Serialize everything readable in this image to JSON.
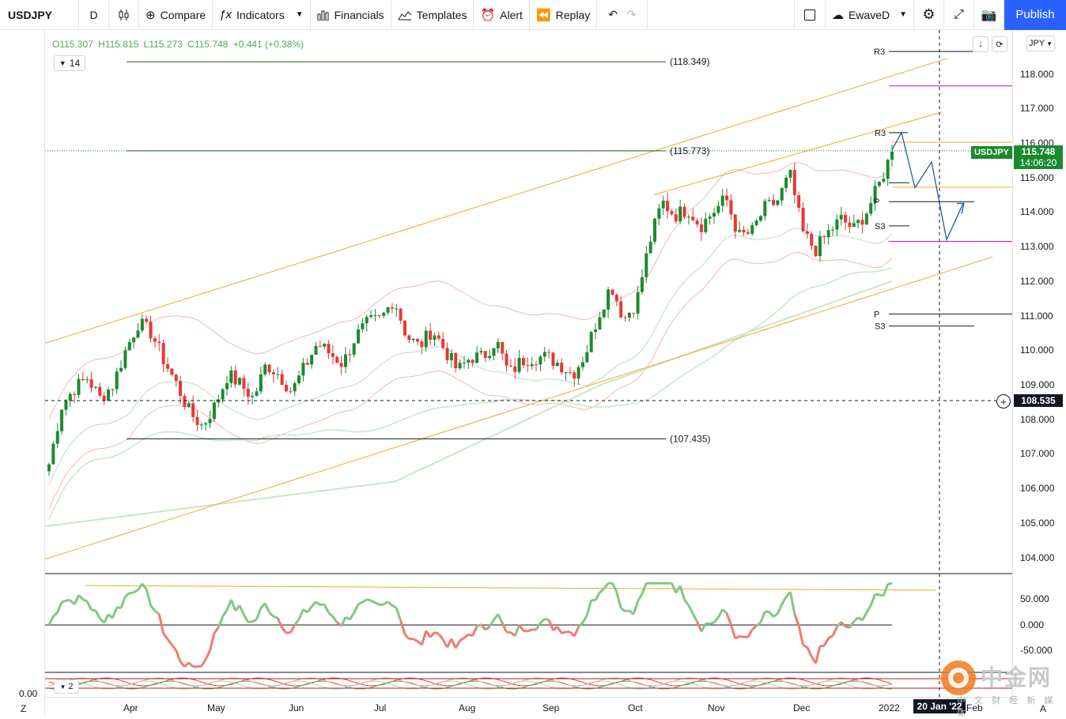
{
  "toolbar": {
    "symbol": "USDJPY",
    "interval": "D",
    "compare": "Compare",
    "indicators": "Indicators",
    "financials": "Financials",
    "templates": "Templates",
    "alert": "Alert",
    "replay": "Replay",
    "layout_name": "EwaveD",
    "publish": "Publish"
  },
  "ohlc": {
    "o": "O115.307",
    "h": "H115.815",
    "l": "L115.273",
    "c": "C115.748",
    "chg": "+0.441 (+0.38%)"
  },
  "indicator_length": "14",
  "oscillator_length": "2",
  "currency": "JPY",
  "price_scale": [
    "118.000",
    "117.000",
    "116.000",
    "115.000",
    "114.000",
    "113.000",
    "112.000",
    "111.000",
    "110.000",
    "109.000",
    "108.000",
    "107.000",
    "106.000",
    "105.000",
    "104.000"
  ],
  "osc_scale": [
    "50.000",
    "0.000",
    "-50.000"
  ],
  "osc2_scale": "0.00",
  "time_axis": [
    "Apr",
    "May",
    "Jun",
    "Jul",
    "Aug",
    "Sep",
    "Oct",
    "Nov",
    "Dec",
    "2022",
    "Feb"
  ],
  "axis_corner_left": "Z",
  "axis_corner_right": "A",
  "last_price": {
    "symbol": "USDJPY",
    "price": "115.748",
    "countdown": "14:06:20"
  },
  "crosshair_price": "108.535",
  "crosshair_date": "20 Jan '22",
  "levels": {
    "high": "(118.349)",
    "mid": "(115.773)",
    "low": "(107.435)"
  },
  "pivots": {
    "r3a": "R3",
    "r3b": "R3",
    "pa": "P",
    "s3a": "S3",
    "pb": "P",
    "s3b": "S3"
  },
  "watermark": {
    "cn": "中金网",
    "sub": "中 文 财 经 新 媒 体",
    "url": "CNGOLD.COM.CN"
  },
  "colors": {
    "up": "#1b8a2e",
    "down": "#e53935",
    "channel": "#f5a623",
    "accent": "#2962ff"
  },
  "chart_data": {
    "type": "candlestick",
    "symbol": "USDJPY",
    "interval": "D",
    "ylim": [
      103.5,
      119.0
    ],
    "last": 115.748,
    "close_path": [
      106.7,
      108.4,
      108.9,
      109.2,
      108.6,
      109.0,
      110.0,
      110.8,
      110.5,
      109.7,
      109.0,
      108.2,
      107.8,
      108.4,
      109.3,
      109.0,
      108.6,
      109.6,
      109.3,
      108.8,
      109.5,
      110.2,
      109.9,
      109.6,
      110.4,
      110.8,
      110.9,
      111.5,
      110.4,
      110.1,
      110.6,
      110.0,
      109.4,
      109.8,
      109.8,
      110.3,
      109.3,
      109.7,
      109.8,
      109.8,
      109.6,
      109.3,
      109.9,
      111.0,
      111.9,
      110.9,
      111.4,
      113.1,
      114.3,
      113.9,
      114.1,
      113.6,
      114.0,
      114.4,
      113.3,
      113.4,
      114.1,
      114.3,
      115.1,
      113.4,
      112.9,
      113.4,
      113.8,
      113.5,
      114.0,
      114.8,
      115.748
    ],
    "levels": [
      118.349,
      115.773,
      107.435
    ]
  }
}
